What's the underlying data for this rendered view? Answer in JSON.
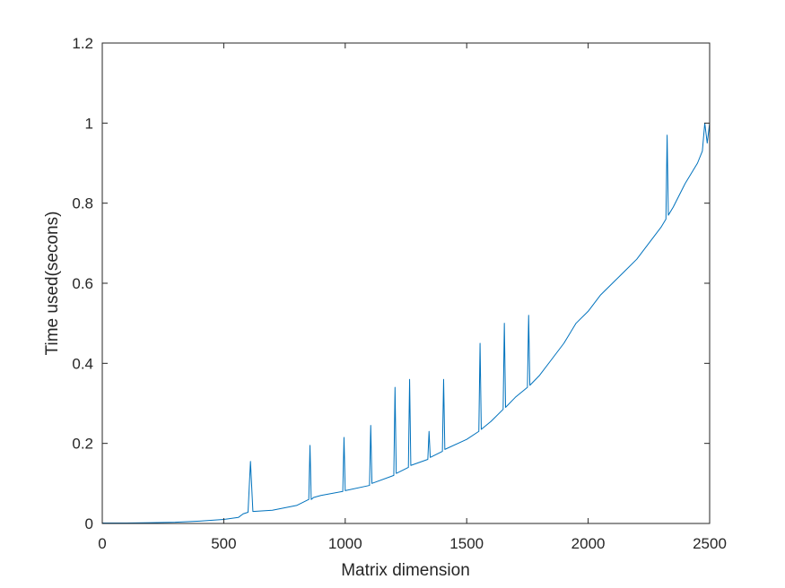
{
  "chart_data": {
    "type": "line",
    "title": "",
    "xlabel": "Matrix dimension",
    "ylabel": "Time used(secons)",
    "xlim": [
      0,
      2500
    ],
    "ylim": [
      0,
      1.2
    ],
    "x_ticks": [
      0,
      500,
      1000,
      1500,
      2000,
      2500
    ],
    "y_ticks": [
      0,
      0.2,
      0.4,
      0.6,
      0.8,
      1,
      1.2
    ],
    "grid": false,
    "box": true,
    "colors": {
      "line": "#0072BD",
      "axes": "#262626",
      "background": "#ffffff"
    },
    "series": [
      {
        "name": "",
        "x": [
          1,
          100,
          200,
          300,
          400,
          500,
          560,
          580,
          600,
          610,
          620,
          700,
          800,
          850,
          855,
          860,
          870,
          900,
          990,
          995,
          1000,
          1100,
          1105,
          1110,
          1200,
          1205,
          1210,
          1260,
          1265,
          1270,
          1340,
          1345,
          1350,
          1400,
          1405,
          1410,
          1500,
          1550,
          1555,
          1560,
          1600,
          1650,
          1655,
          1660,
          1700,
          1750,
          1755,
          1760,
          1800,
          1850,
          1900,
          1950,
          2000,
          2050,
          2100,
          2150,
          2200,
          2250,
          2300,
          2320,
          2325,
          2330,
          2350,
          2400,
          2450,
          2470,
          2480,
          2490,
          2500
        ],
        "y": [
          0.001,
          0.001,
          0.002,
          0.003,
          0.006,
          0.01,
          0.015,
          0.024,
          0.028,
          0.155,
          0.03,
          0.033,
          0.045,
          0.06,
          0.195,
          0.06,
          0.065,
          0.07,
          0.08,
          0.215,
          0.082,
          0.095,
          0.245,
          0.1,
          0.12,
          0.34,
          0.125,
          0.14,
          0.36,
          0.145,
          0.16,
          0.23,
          0.165,
          0.18,
          0.36,
          0.185,
          0.21,
          0.23,
          0.45,
          0.235,
          0.255,
          0.285,
          0.5,
          0.29,
          0.315,
          0.34,
          0.52,
          0.345,
          0.37,
          0.41,
          0.45,
          0.5,
          0.53,
          0.57,
          0.6,
          0.63,
          0.66,
          0.7,
          0.74,
          0.76,
          0.97,
          0.77,
          0.79,
          0.85,
          0.9,
          0.93,
          1.0,
          0.95,
          1.0
        ]
      }
    ]
  }
}
